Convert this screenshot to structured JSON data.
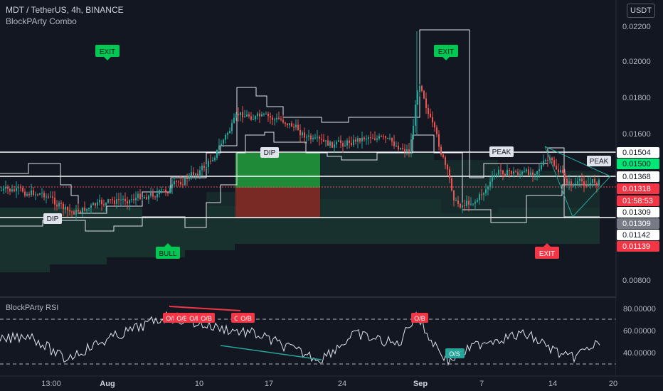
{
  "header": {
    "title": "MDT / TetherUS, 4h, BINANCE",
    "indicator": "BlockPArty Combo",
    "currency_button": "USDT"
  },
  "rsi_panel": {
    "title": "BlockPArty RSI"
  },
  "price_axis": {
    "ticks": [
      "0.02200",
      "0.02000",
      "0.01800",
      "0.01600",
      "0.00800"
    ],
    "price_labels": [
      {
        "text": "0.01504",
        "bg": "#ffffff",
        "fg": "#131722"
      },
      {
        "text": "0.01500",
        "bg": "#00e676",
        "fg": "#131722"
      },
      {
        "text": "0.01368",
        "bg": "#ffffff",
        "fg": "#131722"
      },
      {
        "text": "0.01318",
        "bg": "#f23645",
        "fg": "#ffffff"
      },
      {
        "text": "01:58:53",
        "bg": "#f23645",
        "fg": "#ffffff"
      },
      {
        "text": "0.01309",
        "bg": "#ffffff",
        "fg": "#131722"
      },
      {
        "text": "0.01309",
        "bg": "#787b86",
        "fg": "#ffffff"
      },
      {
        "text": "0.01142",
        "bg": "#ffffff",
        "fg": "#131722"
      },
      {
        "text": "0.01139",
        "bg": "#f23645",
        "fg": "#ffffff"
      }
    ]
  },
  "rsi_axis": {
    "ticks": [
      "80.00000",
      "60.00000",
      "40.00000"
    ]
  },
  "time_axis": {
    "ticks": [
      "13:00",
      "Aug",
      "10",
      "17",
      "24",
      "Sep",
      "7",
      "14",
      "20"
    ]
  },
  "signals": {
    "exit": "EXIT",
    "bull": "BULL",
    "dip": "DIP",
    "peak": "PEAK",
    "overbought": "O/B",
    "oversold": "O/S"
  },
  "colors": {
    "background": "#131722",
    "up_candle": "#26a69a",
    "down_candle": "#ef5350",
    "exit_green": "#00c853",
    "exit_red": "#f23645",
    "bull_green": "#00c853"
  }
}
